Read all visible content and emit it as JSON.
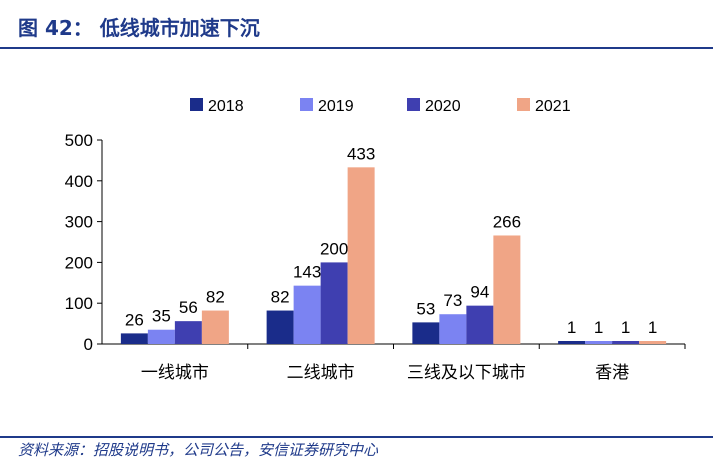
{
  "header": {
    "title": "图 42： 低线城市加速下沉"
  },
  "footer": {
    "source": "资料来源：招股说明书，公司公告，安信证券研究中心"
  },
  "chart_data": {
    "type": "bar",
    "categories": [
      "一线城市",
      "二线城市",
      "三线及以下城市",
      "香港"
    ],
    "series": [
      {
        "name": "2018",
        "values": [
          26,
          82,
          53,
          1
        ],
        "color": "#1a2c8a"
      },
      {
        "name": "2019",
        "values": [
          35,
          143,
          73,
          1
        ],
        "color": "#7b83f2"
      },
      {
        "name": "2020",
        "values": [
          56,
          200,
          94,
          1
        ],
        "color": "#3f3fb0"
      },
      {
        "name": "2021",
        "values": [
          82,
          433,
          266,
          1
        ],
        "color": "#f0a586"
      }
    ],
    "ylim": [
      0,
      500
    ],
    "yticks": [
      "0",
      "100",
      "200",
      "300",
      "400",
      "500"
    ],
    "legend_position": "top",
    "grid": false
  }
}
